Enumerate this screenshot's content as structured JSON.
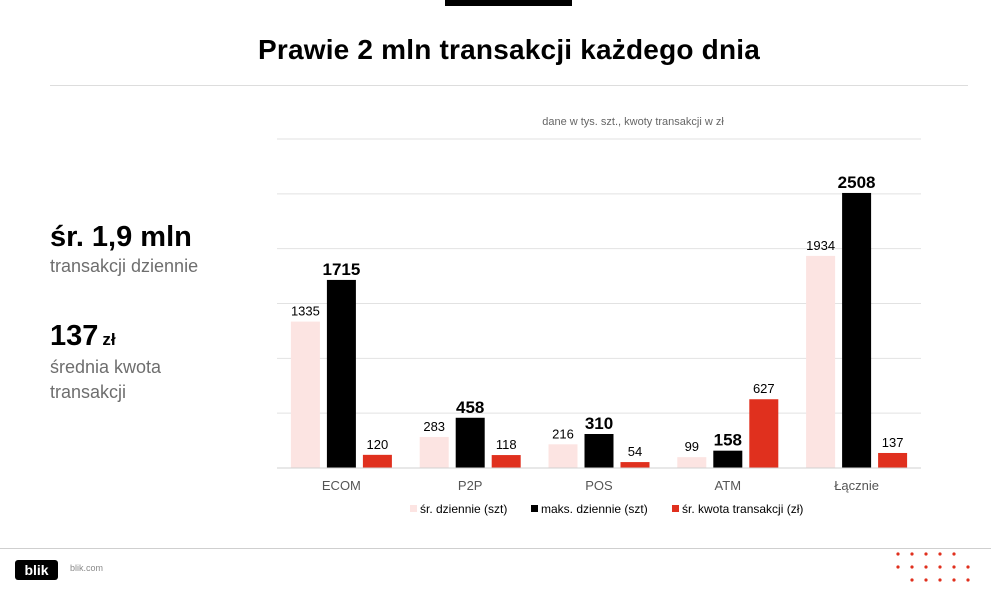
{
  "header": {
    "title": "Prawie 2 mln transakcji każdego dnia"
  },
  "stats": [
    {
      "value": "śr. 1,9 mln",
      "unit": "",
      "label": "transakcji dziennie"
    },
    {
      "value": "137",
      "unit": "zł",
      "label": "średnia kwota transakcji"
    }
  ],
  "footer": {
    "logo": "blik",
    "site": "blik.com"
  },
  "colors": {
    "avg": "#fce4e2",
    "max": "#000000",
    "amount": "#e0301e"
  },
  "chart_data": {
    "type": "bar",
    "subtitle": "dane w tys. szt., kwoty transakcji w zł",
    "categories": [
      "ECOM",
      "P2P",
      "POS",
      "ATM",
      "Łącznie"
    ],
    "series": [
      {
        "name": "śr. dziennie (szt)",
        "values": [
          1335,
          283,
          216,
          99,
          1934
        ],
        "color": "#fce4e2"
      },
      {
        "name": "maks. dziennie (szt)",
        "values": [
          1715,
          458,
          310,
          158,
          2508
        ],
        "color": "#000000"
      },
      {
        "name": "śr. kwota transakcji (zł)",
        "values": [
          120,
          118,
          54,
          627,
          137
        ],
        "color": "#e0301e"
      }
    ],
    "ylim": [
      0,
      3000
    ],
    "grid": true,
    "legend": "bottom"
  }
}
